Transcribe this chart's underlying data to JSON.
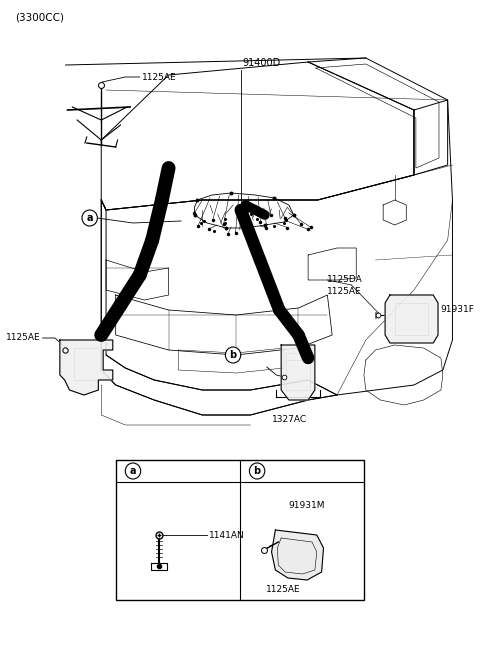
{
  "title": "(3300CC)",
  "bg_color": "#ffffff",
  "fig_width": 4.8,
  "fig_height": 6.56,
  "dpi": 100,
  "label_91400D": "91400D",
  "label_1125AE": "1125AE",
  "label_1125DA": "1125DA",
  "label_91931F": "91931F",
  "label_1327AC": "1327AC",
  "label_1141AN": "1141AN",
  "label_91931M": "91931M",
  "label_title": "(3300CC)",
  "font_size_label": 6.5,
  "font_size_title": 7.5,
  "lw_car": 0.7,
  "lw_thick": 8,
  "lw_detail": 0.5
}
